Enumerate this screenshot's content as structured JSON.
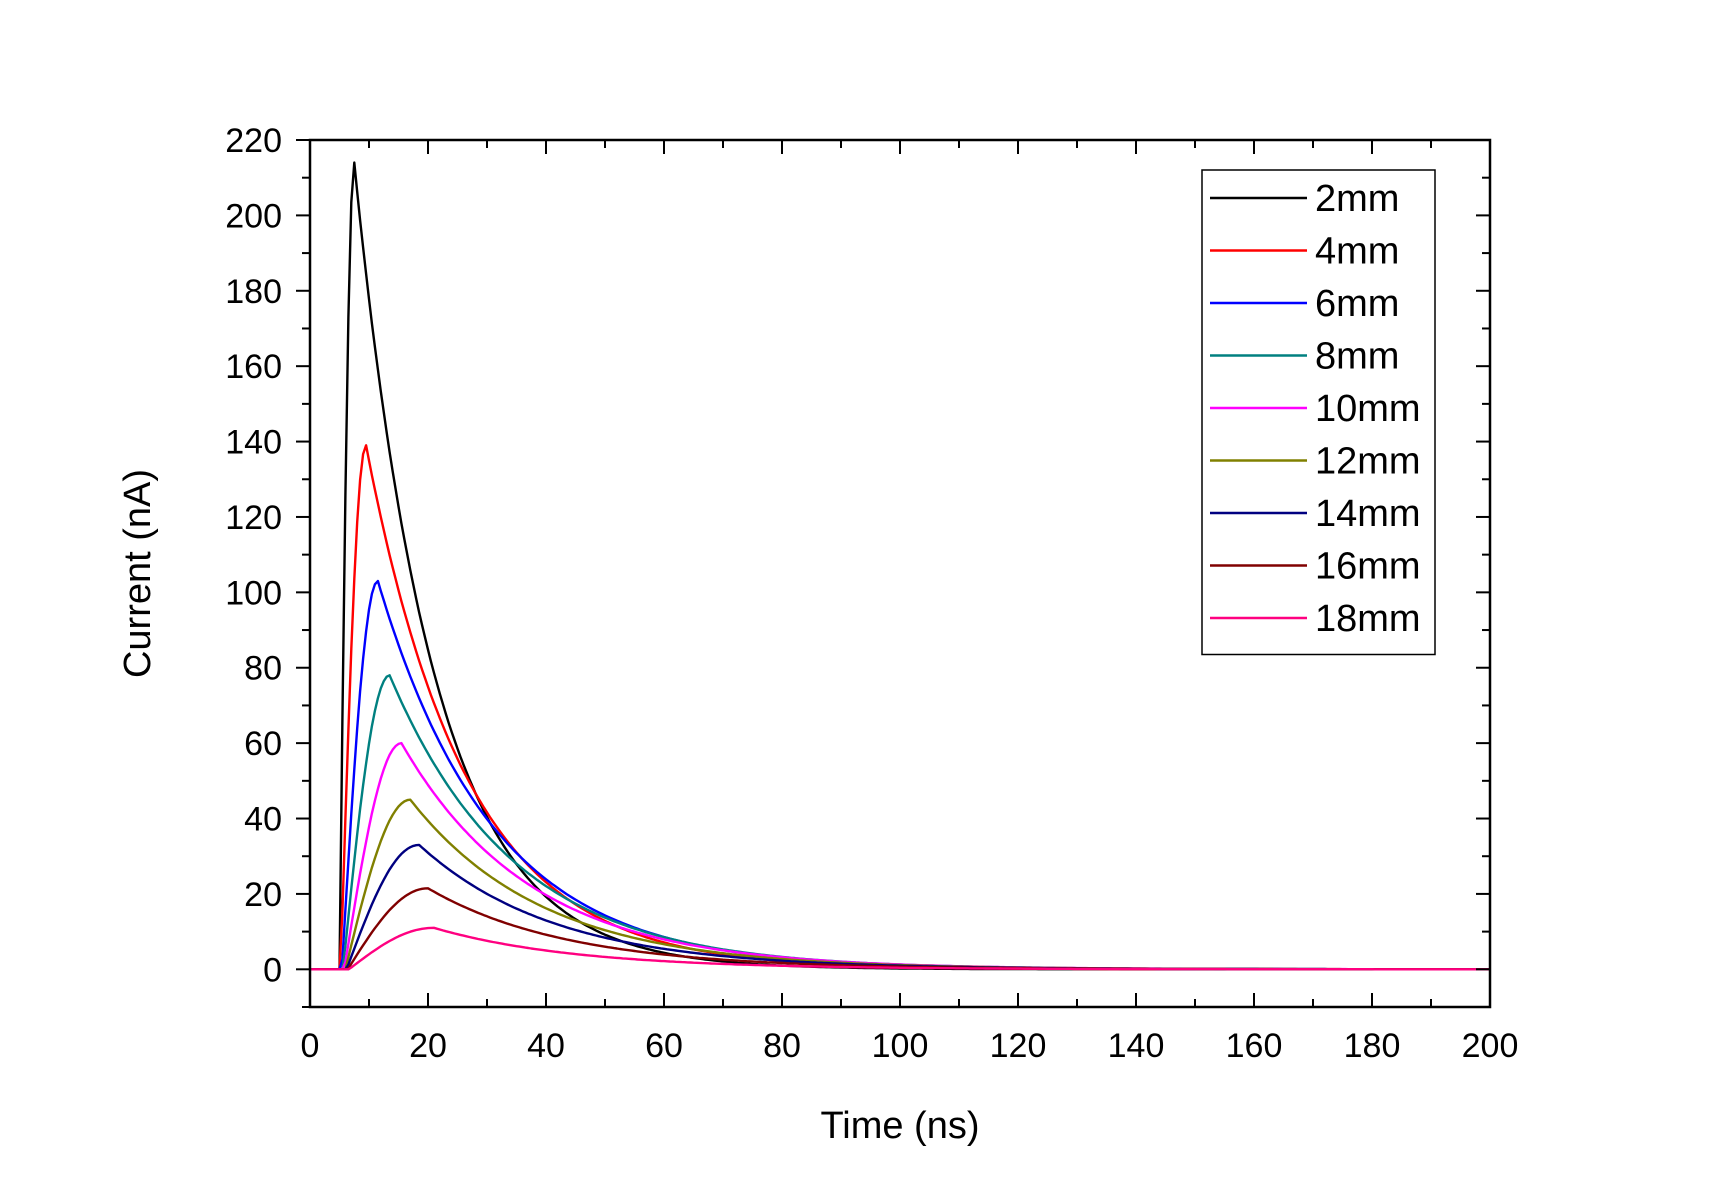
{
  "chart_data": {
    "type": "line",
    "title": "",
    "xlabel": "Time (ns)",
    "ylabel": "Current (nA)",
    "xlim": [
      0,
      200
    ],
    "ylim": [
      -10,
      220
    ],
    "x_ticks": [
      0,
      20,
      40,
      60,
      80,
      100,
      120,
      140,
      160,
      180,
      200
    ],
    "x_tick_labels": [
      "0",
      "20",
      "40",
      "60",
      "80",
      "100",
      "120",
      "140",
      "160",
      "180",
      "200"
    ],
    "y_ticks": [
      0,
      20,
      40,
      60,
      80,
      100,
      120,
      140,
      160,
      180,
      200,
      220
    ],
    "y_tick_labels": [
      "0",
      "20",
      "40",
      "60",
      "80",
      "100",
      "120",
      "140",
      "160",
      "180",
      "200",
      "220"
    ],
    "grid": false,
    "legend_position": "top-right",
    "series": [
      {
        "name": "2mm",
        "color": "#000000",
        "peak_x": 7.5,
        "peak_y": 214,
        "rise_start": 5,
        "tau": 13.5
      },
      {
        "name": "4mm",
        "color": "#ff0000",
        "peak_x": 9.5,
        "peak_y": 139,
        "rise_start": 5.2,
        "tau": 17
      },
      {
        "name": "6mm",
        "color": "#0000ff",
        "peak_x": 11.5,
        "peak_y": 103,
        "rise_start": 5.4,
        "tau": 19.5
      },
      {
        "name": "8mm",
        "color": "#008080",
        "peak_x": 13.5,
        "peak_y": 78,
        "rise_start": 5.6,
        "tau": 21
      },
      {
        "name": "10mm",
        "color": "#ff00ff",
        "peak_x": 15.5,
        "peak_y": 60,
        "rise_start": 5.8,
        "tau": 22
      },
      {
        "name": "12mm",
        "color": "#808000",
        "peak_x": 17,
        "peak_y": 45,
        "rise_start": 6,
        "tau": 22.5
      },
      {
        "name": "14mm",
        "color": "#000080",
        "peak_x": 18.5,
        "peak_y": 33,
        "rise_start": 6.2,
        "tau": 23
      },
      {
        "name": "16mm",
        "color": "#800000",
        "peak_x": 20,
        "peak_y": 21.5,
        "rise_start": 6.4,
        "tau": 23.5
      },
      {
        "name": "18mm",
        "color": "#ff0080",
        "peak_x": 21,
        "peak_y": 11,
        "rise_start": 6.6,
        "tau": 24
      }
    ]
  }
}
